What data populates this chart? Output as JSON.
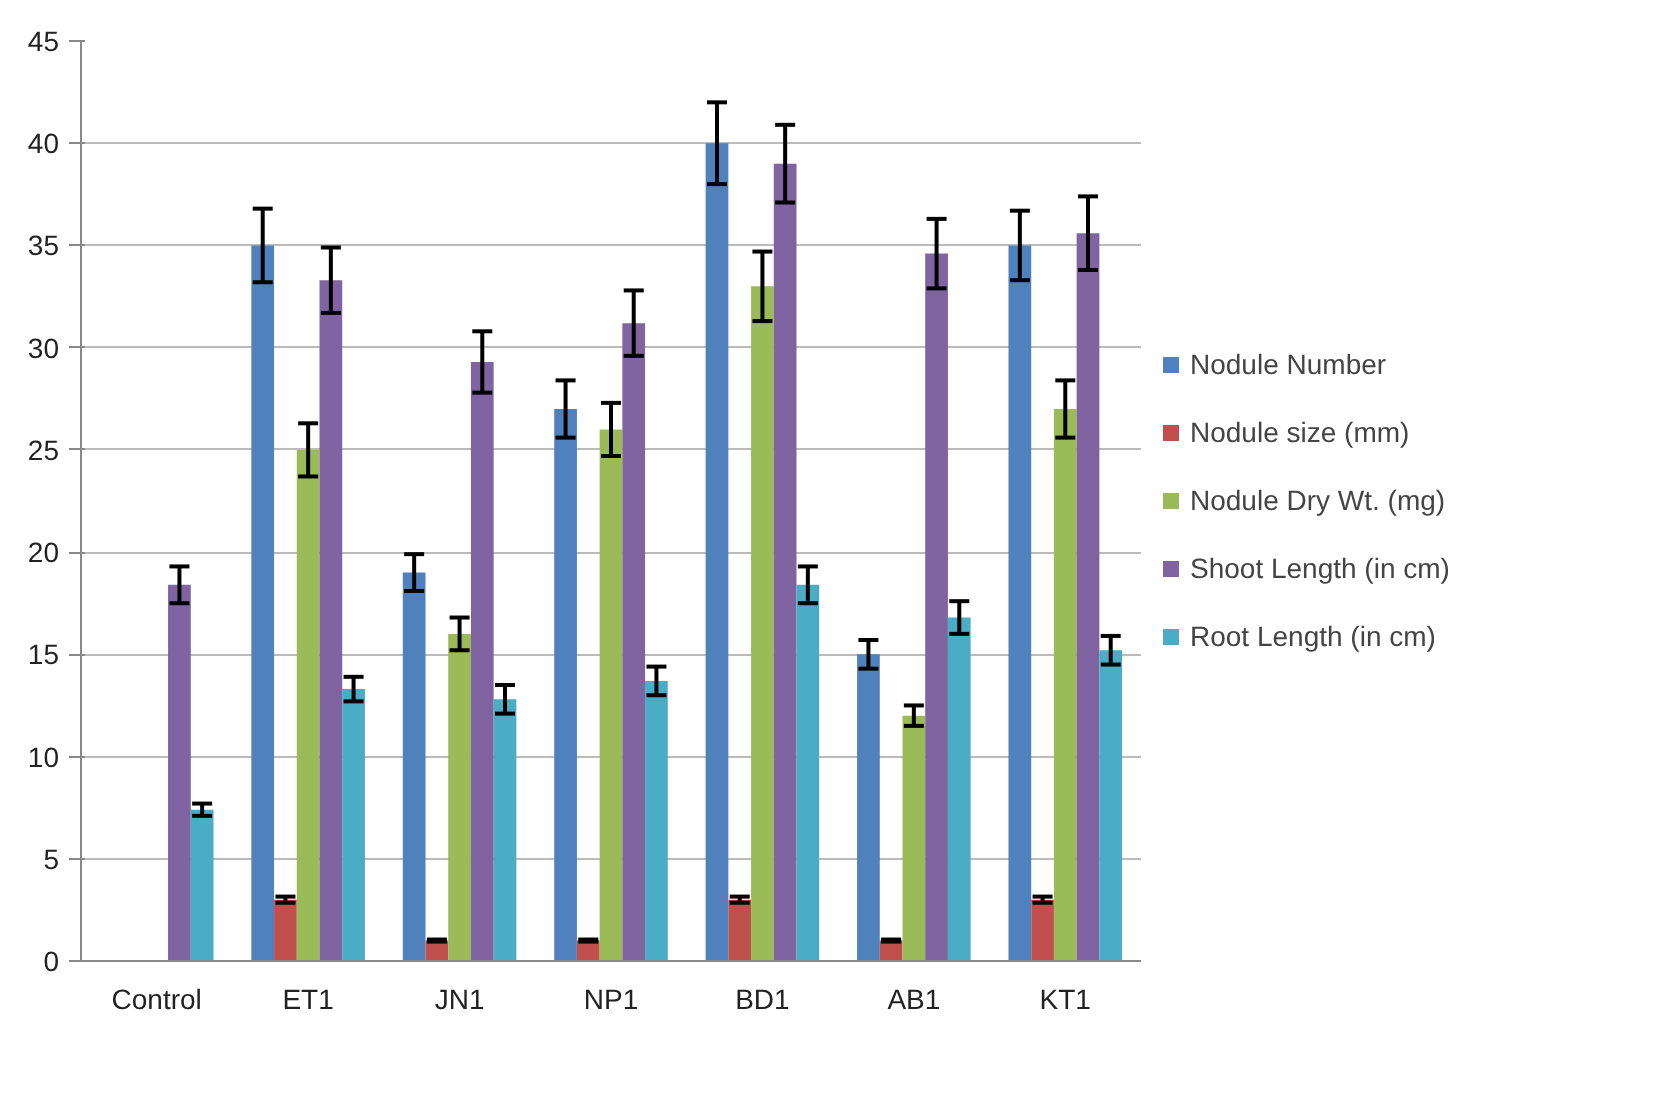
{
  "chart_data": {
    "type": "bar",
    "categories": [
      "Control",
      "ET1",
      "JN1",
      "NP1",
      "BD1",
      "AB1",
      "KT1"
    ],
    "ylim": [
      0,
      45
    ],
    "yticks": [
      0,
      5,
      10,
      15,
      20,
      25,
      30,
      35,
      40,
      45
    ],
    "grid": "y",
    "legend": "right",
    "series": [
      {
        "name": "Nodule Number",
        "color": "#4f81bd",
        "values": [
          0,
          35,
          19,
          27,
          40,
          15,
          35
        ],
        "errors": [
          null,
          1.8,
          0.9,
          1.4,
          2,
          0.7,
          1.7
        ]
      },
      {
        "name": "Nodule size (mm)",
        "color": "#c0504d",
        "values": [
          0,
          3,
          1,
          1,
          3,
          1,
          3
        ],
        "errors": [
          null,
          0.15,
          0.05,
          0.05,
          0.15,
          0.05,
          0.15
        ]
      },
      {
        "name": "Nodule Dry Wt. (mg)",
        "color": "#9bbb59",
        "values": [
          0,
          25,
          16,
          26,
          33,
          12,
          27
        ],
        "errors": [
          null,
          1.3,
          0.8,
          1.3,
          1.7,
          0.5,
          1.4
        ]
      },
      {
        "name": "Shoot Length (in cm)",
        "color": "#8064a2",
        "values": [
          18.4,
          33.3,
          29.3,
          31.2,
          39,
          34.6,
          35.6
        ],
        "errors": [
          0.9,
          1.6,
          1.5,
          1.6,
          1.9,
          1.7,
          1.8
        ]
      },
      {
        "name": "Root Length (in cm)",
        "color": "#4bacc6",
        "values": [
          7.4,
          13.3,
          12.8,
          13.7,
          18.4,
          16.8,
          15.2
        ],
        "errors": [
          0.3,
          0.6,
          0.7,
          0.7,
          0.9,
          0.8,
          0.7
        ]
      }
    ]
  }
}
